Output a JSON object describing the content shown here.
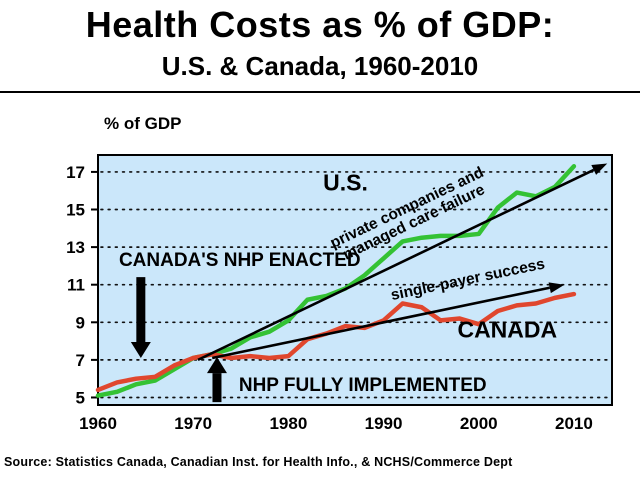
{
  "title": "Health Costs as % of GDP:",
  "subtitle": "U.S. & Canada, 1960-2010",
  "footer": "Source: Statistics Canada, Canadian Inst. for Health Info., & NCHS/Commerce Dept",
  "chart_data": {
    "type": "line",
    "title": "Health Costs as % of GDP: U.S. & Canada, 1960-2010",
    "ylabel": "% of GDP",
    "xlabel": "",
    "xlim": [
      1960,
      2014
    ],
    "ylim": [
      4.6,
      17.9
    ],
    "xticks": [
      1960,
      1970,
      1980,
      1990,
      2000,
      2010
    ],
    "yticks": [
      5,
      7,
      9,
      11,
      13,
      15,
      17
    ],
    "grid": "dotted-horizontal",
    "legend": "inline-labels",
    "plot_bg": "#cbe7fa",
    "x": [
      1960,
      1962,
      1964,
      1966,
      1968,
      1970,
      1972,
      1974,
      1976,
      1978,
      1980,
      1982,
      1984,
      1986,
      1988,
      1990,
      1992,
      1994,
      1996,
      1998,
      2000,
      2002,
      2004,
      2006,
      2008,
      2010
    ],
    "series": [
      {
        "name": "U.S.",
        "color": "#34c234",
        "values": [
          5.1,
          5.3,
          5.7,
          5.9,
          6.5,
          7.1,
          7.3,
          7.6,
          8.2,
          8.5,
          9.1,
          10.2,
          10.4,
          10.8,
          11.5,
          12.4,
          13.3,
          13.5,
          13.6,
          13.6,
          13.7,
          15.1,
          15.9,
          15.7,
          16.2,
          17.3
        ]
      },
      {
        "name": "CANADA",
        "color": "#e0472e",
        "values": [
          5.4,
          5.8,
          6.0,
          6.1,
          6.7,
          7.1,
          7.3,
          7.1,
          7.2,
          7.1,
          7.2,
          8.1,
          8.4,
          8.8,
          8.7,
          9.1,
          10.0,
          9.8,
          9.1,
          9.2,
          8.9,
          9.6,
          9.9,
          10.0,
          10.3,
          10.5
        ]
      }
    ],
    "annotations": {
      "event_arrows": [
        {
          "label": "CANADA'S NHP ENACTED",
          "year": 1964.5,
          "arrow_from": 11.4,
          "arrow_to": 7.1,
          "direction": "down",
          "label_anchor": {
            "year": 1962.2,
            "value": 12.0
          }
        },
        {
          "label": "NHP FULLY IMPLEMENTED",
          "year": 1972.5,
          "arrow_from": 4.75,
          "arrow_to": 7.15,
          "direction": "up",
          "label_anchor": {
            "year": 1974.8,
            "value": 5.35
          }
        }
      ],
      "trend_arrows": [
        {
          "label": "private companies and\nmanaged care failure",
          "series": "U.S.",
          "from": {
            "year": 1970.5,
            "value": 7.0
          },
          "to": {
            "year": 2013.5,
            "value": 17.45
          }
        },
        {
          "label": "single-payer success",
          "series": "CANADA",
          "from": {
            "year": 1972,
            "value": 7.1
          },
          "to": {
            "year": 2009,
            "value": 11.0
          }
        }
      ],
      "series_labels": [
        {
          "text": "U.S.",
          "year": 1986,
          "value": 16.0
        },
        {
          "text": "CANADA",
          "year": 2003,
          "value": 8.2
        }
      ]
    }
  }
}
